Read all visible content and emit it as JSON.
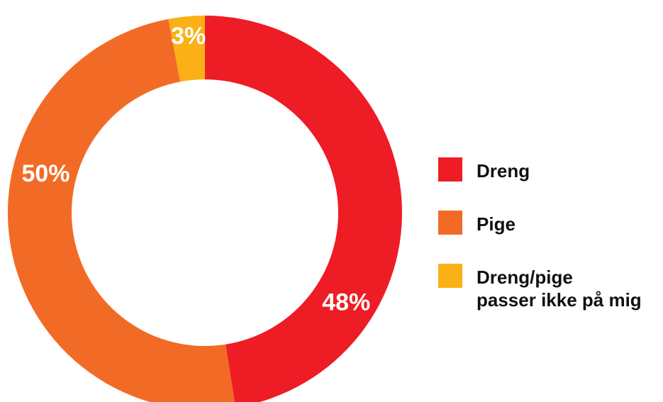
{
  "chart_data": {
    "type": "pie",
    "variant": "donut",
    "title": "",
    "categories": [
      "Dreng",
      "Pige",
      "Dreng/pige\npasser ikke på mig"
    ],
    "values": [
      48,
      50,
      3
    ],
    "value_labels": [
      "48%",
      "50%",
      "3%"
    ],
    "colors": [
      "#ee1c25",
      "#f26b26",
      "#fbb016"
    ],
    "start": "top",
    "direction": "clockwise",
    "legend_position": "right"
  },
  "legend": {
    "items": [
      {
        "label": "Dreng",
        "color": "#ee1c25"
      },
      {
        "label": "Pige",
        "color": "#f26b26"
      },
      {
        "label": "Dreng/pige\npasser ikke på mig",
        "color": "#fbb016"
      }
    ]
  }
}
